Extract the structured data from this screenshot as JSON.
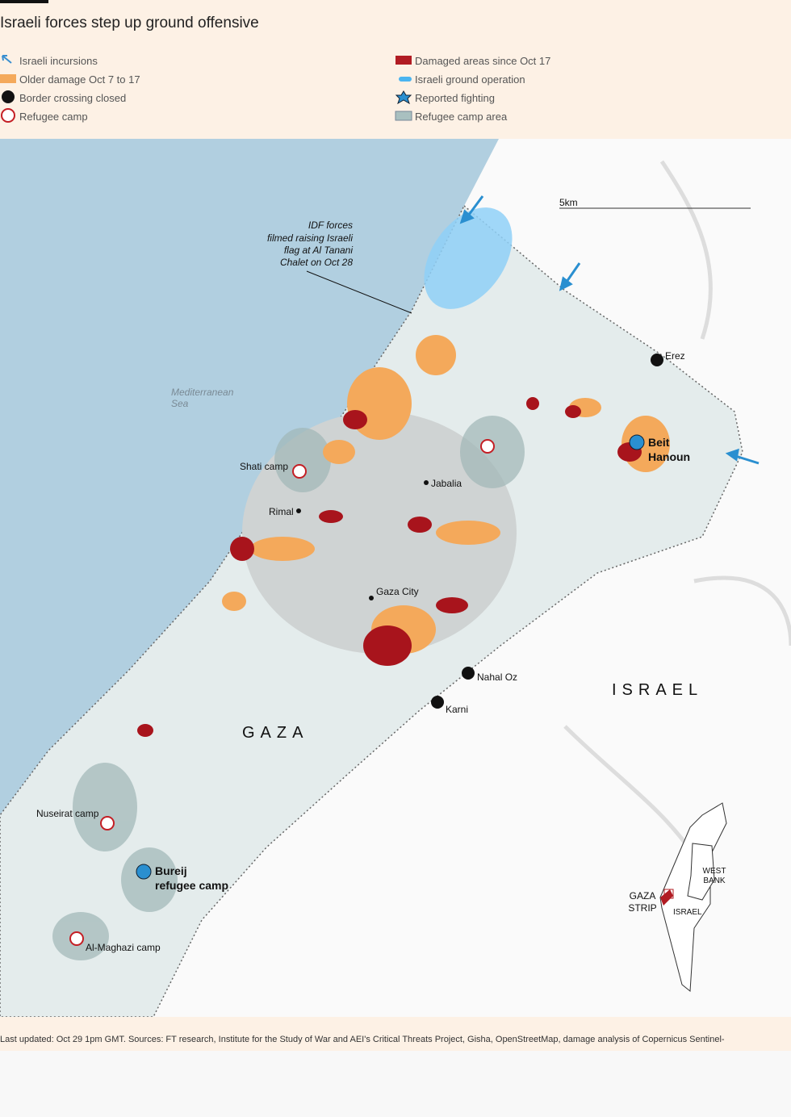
{
  "header": {
    "title": "Israeli forces step up ground offensive"
  },
  "legend": [
    "Israeli incursions",
    "Damaged areas since Oct 17",
    "Older damage Oct 7 to 17",
    "Israeli ground operation",
    "Border crossing closed",
    "Reported fighting",
    "Refugee camp",
    "Refugee camp area"
  ],
  "map": {
    "annotation": [
      "IDF forces",
      "filmed raising Israeli",
      "flag at Al Tanani",
      "Chalet on Oct 28"
    ],
    "scale": "5km",
    "sea": [
      "Mediterranean",
      "Sea"
    ],
    "places": {
      "erez": "Erez",
      "beit_hanoun": [
        "Beit",
        "Hanoun"
      ],
      "shati": "Shati camp",
      "jabalia": "Jabalia",
      "rimal": "Rimal",
      "gaza_city": "Gaza City",
      "nahal_oz": "Nahal Oz",
      "karni": "Karni",
      "gaza": "GAZA",
      "israel": "ISRAEL",
      "nuseirat": "Nuseirat camp",
      "bureij": [
        "Bureij",
        "refugee camp"
      ],
      "maghazi": "Al-Maghazi camp"
    },
    "inset": {
      "west_bank": [
        "WEST",
        "BANK"
      ],
      "gaza_strip": [
        "GAZA",
        "STRIP"
      ],
      "israel": "ISRAEL"
    }
  },
  "footer": "Last updated: Oct 29 1pm GMT. Sources: FT research, Institute for the Study of War and AEI's Critical Threats Project, Gisha, OpenStreetMap, damage analysis of Copernicus Sentinel-"
}
